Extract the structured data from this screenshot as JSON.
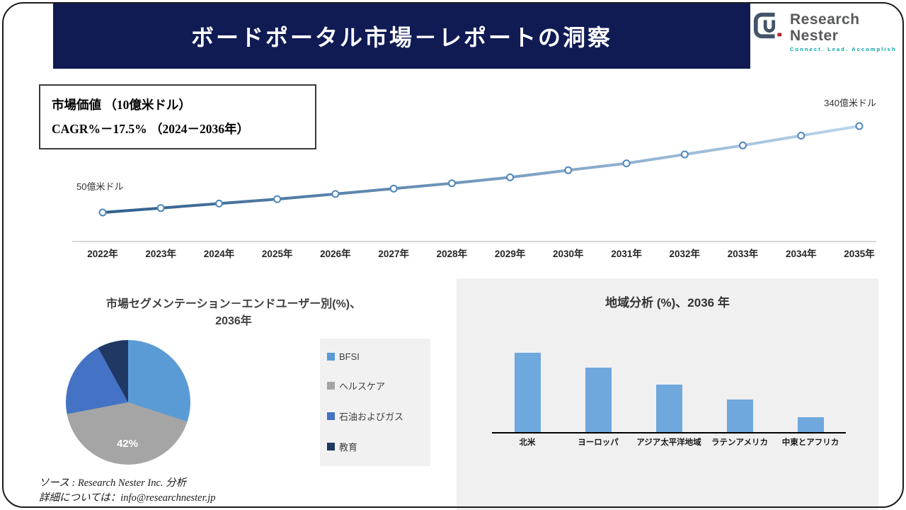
{
  "header": {
    "title": "ボードポータル市場－レポートの洞察"
  },
  "logo": {
    "name": "Research Nester",
    "tagline": "Connect. Lead. Accomplish"
  },
  "info_box": {
    "line1": "市場価値 （10億米ドル）",
    "line2": "CAGR%－17.5% （2024－2036年）"
  },
  "chart_data": [
    {
      "type": "line",
      "title": "市場価値（10億米ドル）",
      "x": [
        "2022年",
        "2023年",
        "2024年",
        "2025年",
        "2026年",
        "2027年",
        "2028年",
        "2029年",
        "2030年",
        "2031年",
        "2032年",
        "2033年",
        "2034年",
        "2035年"
      ],
      "values": [
        50,
        65,
        80,
        95,
        112,
        130,
        148,
        168,
        192,
        215,
        245,
        275,
        308,
        340
      ],
      "start_label": "50億米ドル",
      "end_label": "340億米ドル",
      "line_color_start": "#2e5e8d",
      "line_color_end": "#bcd6ec"
    },
    {
      "type": "pie",
      "title_line1": "市場セグメンテーション－エンドユーザー別(%)、",
      "title_line2": "2036年",
      "labels": [
        "BFSI",
        "ヘルスケア",
        "石油およびガス",
        "教育"
      ],
      "values": [
        30,
        42,
        20,
        8
      ],
      "colors": [
        "#5B9BD5",
        "#A5A5A5",
        "#4472C4",
        "#203864"
      ],
      "callout_label": "42%",
      "legend_position": "right"
    },
    {
      "type": "bar",
      "title": "地域分析 (%)、2036 年",
      "categories": [
        "北米",
        "ヨーロッパ",
        "アジア太平洋地域",
        "ラテンアメリカ",
        "中東とアフリカ"
      ],
      "values": [
        32,
        26,
        19,
        13,
        6
      ],
      "bar_color": "#6FA8DC"
    }
  ],
  "footer": {
    "line1": "ソース : Research Nester Inc. 分析",
    "line2": "詳細については：info@researchnester.jp"
  }
}
